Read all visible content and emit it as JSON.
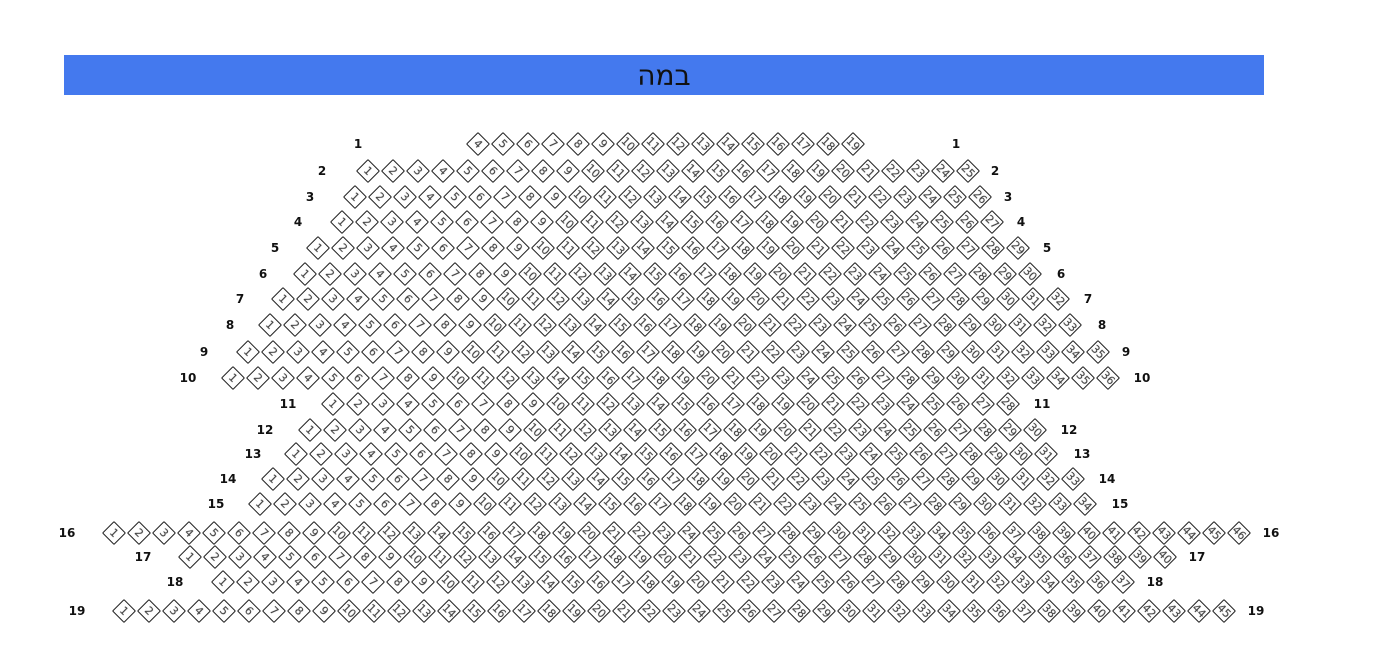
{
  "stage": {
    "label": "במה",
    "color": "#4479ee"
  },
  "rows": [
    {
      "label": "1",
      "first_seat": 4,
      "last_seat": 19
    },
    {
      "label": "2",
      "first_seat": 1,
      "last_seat": 25
    },
    {
      "label": "3",
      "first_seat": 1,
      "last_seat": 26
    },
    {
      "label": "4",
      "first_seat": 1,
      "last_seat": 27
    },
    {
      "label": "5",
      "first_seat": 1,
      "last_seat": 29
    },
    {
      "label": "6",
      "first_seat": 1,
      "last_seat": 30
    },
    {
      "label": "7",
      "first_seat": 1,
      "last_seat": 32
    },
    {
      "label": "8",
      "first_seat": 1,
      "last_seat": 33
    },
    {
      "label": "9",
      "first_seat": 1,
      "last_seat": 35
    },
    {
      "label": "10",
      "first_seat": 1,
      "last_seat": 36
    },
    {
      "label": "11",
      "first_seat": 1,
      "last_seat": 28
    },
    {
      "label": "12",
      "first_seat": 1,
      "last_seat": 30
    },
    {
      "label": "13",
      "first_seat": 1,
      "last_seat": 31
    },
    {
      "label": "14",
      "first_seat": 1,
      "last_seat": 33
    },
    {
      "label": "15",
      "first_seat": 1,
      "last_seat": 34
    },
    {
      "label": "16",
      "first_seat": 1,
      "last_seat": 46
    },
    {
      "label": "17",
      "first_seat": 1,
      "last_seat": 40
    },
    {
      "label": "18",
      "first_seat": 1,
      "last_seat": 37
    },
    {
      "label": "19",
      "first_seat": 1,
      "last_seat": 45
    }
  ]
}
